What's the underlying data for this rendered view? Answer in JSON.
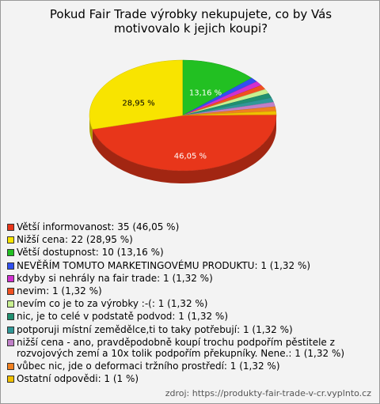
{
  "chart_data": {
    "type": "pie",
    "title": "Pokud Fair Trade výrobky nekupujete, co by Vás motivovalo k jejich koupi?",
    "categories": [
      "Větší informovanost: 35 (46,05 %)",
      "Nižší cena: 22 (28,95 %)",
      "Větší dostupnost: 10 (13,16 %)",
      "NEVĚŘÍM TOMUTO MARKETINGOVÉMU PRODUKTU: 1 (1,32 %)",
      "kdyby si nehrály na fair trade: 1 (1,32 %)",
      "nevim: 1 (1,32 %)",
      "nevím co je to za výrobky :-(: 1 (1,32 %)",
      "nic, je to celé v podstatě podvod: 1 (1,32 %)",
      "potporuji místní zemědělce,ti to taky potřebují: 1 (1,32 %)",
      "nižší cena - ano, pravděpodobně koupí trochu podpořím pěstitele z rozvojových zemí a 10x tolik podpořím překupníky. Nene.: 1 (1,32 %)",
      "vůbec nic, jde o deformaci tržního prostředí: 1 (1,32 %)",
      "Ostatní odpovědi: 1 (1 %)"
    ],
    "values": [
      46.05,
      28.95,
      13.16,
      1.32,
      1.32,
      1.32,
      1.32,
      1.32,
      1.32,
      1.32,
      1.32,
      1
    ],
    "value_labels": [
      "46,05 %",
      "28,95 %",
      "13,16 %",
      null,
      null,
      null,
      null,
      null,
      null,
      null,
      null,
      null
    ],
    "colors": [
      "#e8361a",
      "#f8e400",
      "#22c022",
      "#3050f0",
      "#d030d0",
      "#f05020",
      "#c8f090",
      "#209070",
      "#309898",
      "#c080c8",
      "#f08020",
      "#f0c000"
    ],
    "source": "zdroj: https://produkty-fair-trade-v-cr.vyplnto.cz"
  }
}
